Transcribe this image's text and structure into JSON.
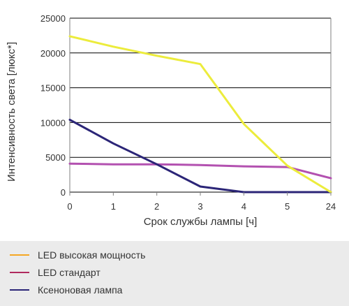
{
  "chart_data": {
    "type": "line",
    "categories": [
      "0",
      "1",
      "2",
      "3",
      "4",
      "5",
      "24"
    ],
    "xlabel": "Срок службы лампы [ч]",
    "ylabel": "Интенсивность света [люкс*]",
    "ylim": [
      0,
      25000
    ],
    "yticks": [
      "0",
      "5000",
      "10000",
      "15000",
      "20000",
      "25000"
    ],
    "grid": "horizontal",
    "legend_placement": "bottom",
    "series": [
      {
        "name": "LED высокая мощность",
        "color": "#ecec3c",
        "legend_color": "#f5a623",
        "values": [
          22400,
          20900,
          19600,
          18400,
          9800,
          3800,
          0
        ]
      },
      {
        "name": "LED стандарт",
        "color": "#b351b0",
        "legend_color": "#b02a5e",
        "values": [
          4100,
          4000,
          4000,
          3900,
          3700,
          3600,
          2000
        ]
      },
      {
        "name": "Ксеноновая лампа",
        "color": "#2b2577",
        "legend_color": "#2b2577",
        "values": [
          10400,
          7000,
          4000,
          800,
          0,
          0,
          0
        ]
      }
    ]
  }
}
